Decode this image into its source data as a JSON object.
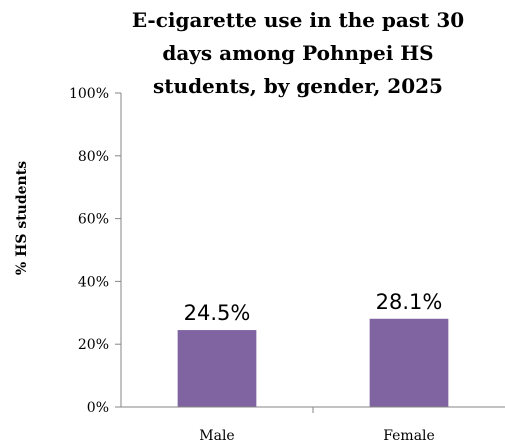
{
  "chart_data": {
    "type": "bar",
    "title_lines": [
      "E-cigarette use in the past 30",
      "days among Pohnpei HS",
      "students, by gender, 2025"
    ],
    "ylabel": "% HS students",
    "xlabel": "",
    "categories": [
      "Male",
      "Female"
    ],
    "values": [
      24.5,
      28.1
    ],
    "data_labels": [
      "24.5%",
      "28.1%"
    ],
    "yticks": [
      "0%",
      "20%",
      "40%",
      "60%",
      "80%",
      "100%"
    ],
    "ylim": [
      0,
      100
    ],
    "grid": false,
    "bar_color": "#8064a2"
  }
}
